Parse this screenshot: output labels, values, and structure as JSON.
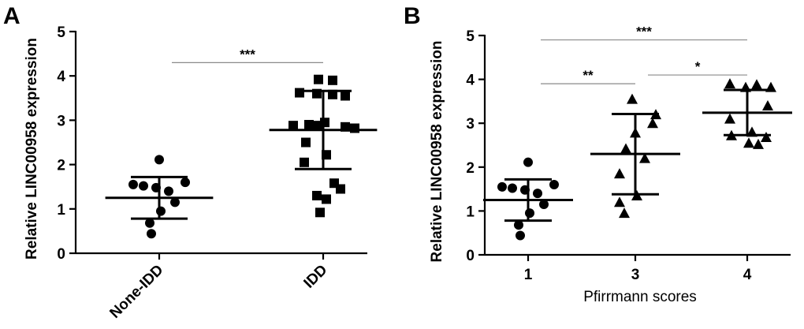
{
  "chart_data": [
    {
      "panel": "A",
      "type": "scatter",
      "ylabel": "Relative LINC00958 expression",
      "xlabel": "",
      "ylim": [
        0,
        5
      ],
      "yticks": [
        0,
        1,
        2,
        3,
        4,
        5
      ],
      "categories": [
        "None-IDD",
        "IDD"
      ],
      "groups": [
        {
          "category": "None-IDD",
          "marker": "circle",
          "values": [
            2.11,
            1.55,
            1.52,
            1.48,
            1.6,
            1.4,
            1.15,
            0.95,
            0.68,
            0.44
          ],
          "mean": 1.25,
          "sd_low": 0.78,
          "sd_high": 1.72
        },
        {
          "category": "IDD",
          "marker": "square",
          "values": [
            3.92,
            3.9,
            3.62,
            3.6,
            3.58,
            3.55,
            2.88,
            2.9,
            2.95,
            2.85,
            2.88,
            2.82,
            2.5,
            2.22,
            2.05,
            1.58,
            1.45,
            1.3,
            1.22,
            0.92
          ],
          "mean": 2.78,
          "sd_low": 1.9,
          "sd_high": 3.66
        }
      ],
      "significance": [
        {
          "from": "None-IDD",
          "to": "IDD",
          "label": "***",
          "y": 4.3
        }
      ]
    },
    {
      "panel": "B",
      "type": "scatter",
      "ylabel": "Relative LINC00958 expression",
      "xlabel": "Pfirrmann scores",
      "ylim": [
        0,
        5
      ],
      "yticks": [
        0,
        1,
        2,
        3,
        4,
        5
      ],
      "categories": [
        "1",
        "3",
        "4"
      ],
      "groups": [
        {
          "category": "1",
          "marker": "circle",
          "values": [
            2.11,
            1.55,
            1.52,
            1.48,
            1.6,
            1.4,
            1.15,
            0.95,
            0.68,
            0.44
          ],
          "mean": 1.25,
          "sd_low": 0.78,
          "sd_high": 1.72
        },
        {
          "category": "3",
          "marker": "triangle",
          "values": [
            3.55,
            3.2,
            3.0,
            2.78,
            2.42,
            2.2,
            1.85,
            1.35,
            1.2,
            0.95
          ],
          "mean": 2.3,
          "sd_low": 1.38,
          "sd_high": 3.21
        },
        {
          "category": "4",
          "marker": "triangle",
          "values": [
            3.9,
            3.88,
            3.82,
            3.82,
            3.4,
            3.1,
            2.8,
            2.72,
            2.68,
            2.55,
            2.52
          ],
          "mean": 3.24,
          "sd_low": 2.73,
          "sd_high": 3.76
        }
      ],
      "significance": [
        {
          "from": "1",
          "to": "4",
          "label": "***",
          "y": 4.9
        },
        {
          "from": "1",
          "to": "3",
          "label": "**",
          "y": 3.9
        },
        {
          "from": "3",
          "to": "4",
          "label": "*",
          "y": 4.1
        }
      ]
    }
  ]
}
